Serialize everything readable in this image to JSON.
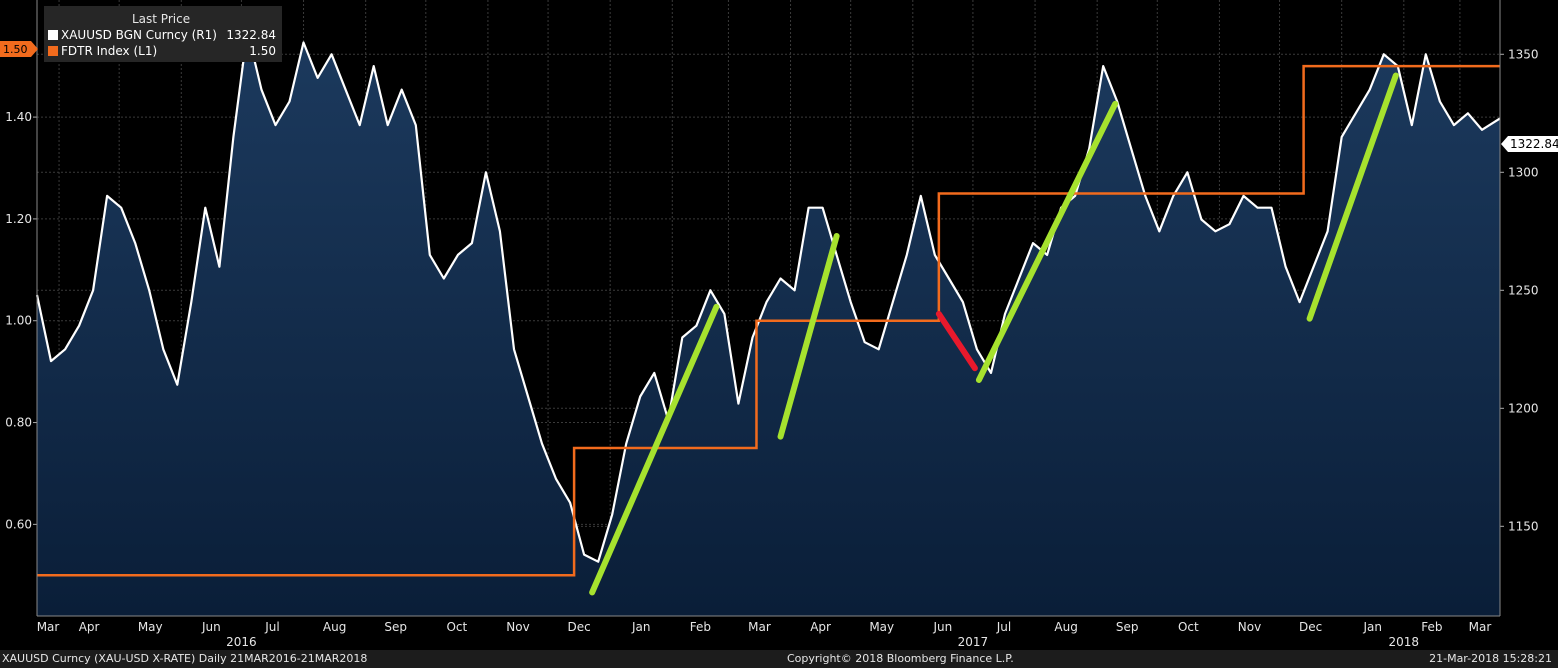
{
  "legend": {
    "header": "Last Price",
    "items": [
      {
        "label": "XAUUSD BGN Curncy  (R1)",
        "value": "1322.84",
        "color": "#ffffff"
      },
      {
        "label": "FDTR Index  (L1)",
        "value": "1.50",
        "color": "#f26b1d"
      }
    ]
  },
  "left_badge": "1.50",
  "right_badge": "1322.84",
  "footer": {
    "left": "XAUUSD Curncy (XAU-USD X-RATE)  Daily 21MAR2016-21MAR2018",
    "center": "Copyright© 2018 Bloomberg Finance L.P.",
    "right": "21-Mar-2018 15:28:21"
  },
  "colors": {
    "background": "#000000",
    "area_fill_top": "#1c3a5e",
    "area_fill_bottom": "#0a1e38",
    "gold_line": "#ffffff",
    "fed_line": "#f26b1d",
    "up_trend": "#a6e22e",
    "down_trend": "#e8192c"
  },
  "chart_data": {
    "type": "line",
    "x_range": [
      "2016-03-21",
      "2018-03-21"
    ],
    "month_labels": [
      "Mar",
      "Apr",
      "May",
      "Jun",
      "Jul",
      "Aug",
      "Sep",
      "Oct",
      "Nov",
      "Dec",
      "Jan",
      "Feb",
      "Mar",
      "Apr",
      "May",
      "Jun",
      "Jul",
      "Aug",
      "Sep",
      "Oct",
      "Nov",
      "Dec",
      "Jan",
      "Feb",
      "Mar"
    ],
    "year_labels": [
      {
        "label": "2016",
        "at": "2016-07-01"
      },
      {
        "label": "2017",
        "at": "2017-07-01"
      },
      {
        "label": "2018",
        "at": "2018-02-01"
      }
    ],
    "left_axis": {
      "ticks": [
        "0.60",
        "0.80",
        "1.00",
        "1.20",
        "1.40"
      ],
      "ylim": [
        0.42,
        1.63
      ]
    },
    "right_axis": {
      "ticks": [
        "1150",
        "1200",
        "1250",
        "1300",
        "1350"
      ],
      "ylim": [
        1112,
        1373
      ]
    },
    "series": [
      {
        "name": "XAUUSD BGN Curncy",
        "axis": "right",
        "style": "area",
        "points": [
          [
            "2016-03-21",
            1248
          ],
          [
            "2016-03-28",
            1220
          ],
          [
            "2016-04-04",
            1225
          ],
          [
            "2016-04-11",
            1235
          ],
          [
            "2016-04-18",
            1250
          ],
          [
            "2016-04-25",
            1290
          ],
          [
            "2016-05-02",
            1285
          ],
          [
            "2016-05-09",
            1270
          ],
          [
            "2016-05-16",
            1250
          ],
          [
            "2016-05-23",
            1225
          ],
          [
            "2016-05-30",
            1210
          ],
          [
            "2016-06-06",
            1245
          ],
          [
            "2016-06-13",
            1285
          ],
          [
            "2016-06-20",
            1260
          ],
          [
            "2016-06-27",
            1315
          ],
          [
            "2016-07-04",
            1360
          ],
          [
            "2016-07-11",
            1335
          ],
          [
            "2016-07-18",
            1320
          ],
          [
            "2016-07-25",
            1330
          ],
          [
            "2016-08-01",
            1355
          ],
          [
            "2016-08-08",
            1340
          ],
          [
            "2016-08-15",
            1350
          ],
          [
            "2016-08-22",
            1335
          ],
          [
            "2016-08-29",
            1320
          ],
          [
            "2016-09-05",
            1345
          ],
          [
            "2016-09-12",
            1320
          ],
          [
            "2016-09-19",
            1335
          ],
          [
            "2016-09-26",
            1320
          ],
          [
            "2016-10-03",
            1265
          ],
          [
            "2016-10-10",
            1255
          ],
          [
            "2016-10-17",
            1265
          ],
          [
            "2016-10-24",
            1270
          ],
          [
            "2016-10-31",
            1300
          ],
          [
            "2016-11-07",
            1275
          ],
          [
            "2016-11-14",
            1225
          ],
          [
            "2016-11-21",
            1205
          ],
          [
            "2016-11-28",
            1185
          ],
          [
            "2016-12-05",
            1170
          ],
          [
            "2016-12-12",
            1160
          ],
          [
            "2016-12-19",
            1138
          ],
          [
            "2016-12-26",
            1135
          ],
          [
            "2017-01-02",
            1155
          ],
          [
            "2017-01-09",
            1185
          ],
          [
            "2017-01-16",
            1205
          ],
          [
            "2017-01-23",
            1215
          ],
          [
            "2017-01-30",
            1195
          ],
          [
            "2017-02-06",
            1230
          ],
          [
            "2017-02-13",
            1235
          ],
          [
            "2017-02-20",
            1250
          ],
          [
            "2017-02-27",
            1240
          ],
          [
            "2017-03-06",
            1202
          ],
          [
            "2017-03-13",
            1230
          ],
          [
            "2017-03-20",
            1245
          ],
          [
            "2017-03-27",
            1255
          ],
          [
            "2017-04-03",
            1250
          ],
          [
            "2017-04-10",
            1285
          ],
          [
            "2017-04-17",
            1285
          ],
          [
            "2017-04-24",
            1265
          ],
          [
            "2017-05-01",
            1245
          ],
          [
            "2017-05-08",
            1228
          ],
          [
            "2017-05-15",
            1225
          ],
          [
            "2017-05-22",
            1245
          ],
          [
            "2017-05-29",
            1265
          ],
          [
            "2017-06-05",
            1290
          ],
          [
            "2017-06-12",
            1265
          ],
          [
            "2017-06-19",
            1255
          ],
          [
            "2017-06-26",
            1245
          ],
          [
            "2017-07-03",
            1225
          ],
          [
            "2017-07-10",
            1215
          ],
          [
            "2017-07-17",
            1240
          ],
          [
            "2017-07-24",
            1255
          ],
          [
            "2017-07-31",
            1270
          ],
          [
            "2017-08-07",
            1265
          ],
          [
            "2017-08-14",
            1285
          ],
          [
            "2017-08-21",
            1290
          ],
          [
            "2017-08-28",
            1310
          ],
          [
            "2017-09-04",
            1345
          ],
          [
            "2017-09-11",
            1330
          ],
          [
            "2017-09-18",
            1310
          ],
          [
            "2017-09-25",
            1290
          ],
          [
            "2017-10-02",
            1275
          ],
          [
            "2017-10-09",
            1290
          ],
          [
            "2017-10-16",
            1300
          ],
          [
            "2017-10-23",
            1280
          ],
          [
            "2017-10-30",
            1275
          ],
          [
            "2017-11-06",
            1278
          ],
          [
            "2017-11-13",
            1290
          ],
          [
            "2017-11-20",
            1285
          ],
          [
            "2017-11-27",
            1285
          ],
          [
            "2017-12-04",
            1260
          ],
          [
            "2017-12-11",
            1245
          ],
          [
            "2017-12-18",
            1260
          ],
          [
            "2017-12-25",
            1275
          ],
          [
            "2018-01-01",
            1315
          ],
          [
            "2018-01-08",
            1325
          ],
          [
            "2018-01-15",
            1335
          ],
          [
            "2018-01-22",
            1350
          ],
          [
            "2018-01-29",
            1345
          ],
          [
            "2018-02-05",
            1320
          ],
          [
            "2018-02-12",
            1350
          ],
          [
            "2018-02-19",
            1330
          ],
          [
            "2018-02-26",
            1320
          ],
          [
            "2018-03-05",
            1325
          ],
          [
            "2018-03-12",
            1318
          ],
          [
            "2018-03-21",
            1322.84
          ]
        ]
      },
      {
        "name": "FDTR Index",
        "axis": "left",
        "style": "step",
        "points": [
          [
            "2016-03-21",
            0.5
          ],
          [
            "2016-12-14",
            0.75
          ],
          [
            "2017-03-15",
            1.0
          ],
          [
            "2017-06-14",
            1.25
          ],
          [
            "2017-12-13",
            1.5
          ],
          [
            "2018-03-21",
            1.5
          ]
        ]
      }
    ],
    "annotations": [
      {
        "kind": "up-trend",
        "from": [
          "2016-12-23",
          1122
        ],
        "to": [
          "2017-02-23",
          1243
        ]
      },
      {
        "kind": "up-trend",
        "from": [
          "2017-03-27",
          1188
        ],
        "to": [
          "2017-04-24",
          1273
        ]
      },
      {
        "kind": "down-trend",
        "from": [
          "2017-06-14",
          1240
        ],
        "to": [
          "2017-07-02",
          1217
        ]
      },
      {
        "kind": "up-trend",
        "from": [
          "2017-07-04",
          1212
        ],
        "to": [
          "2017-09-10",
          1329
        ]
      },
      {
        "kind": "up-trend",
        "from": [
          "2017-12-16",
          1238
        ],
        "to": [
          "2018-01-28",
          1341
        ]
      }
    ]
  }
}
